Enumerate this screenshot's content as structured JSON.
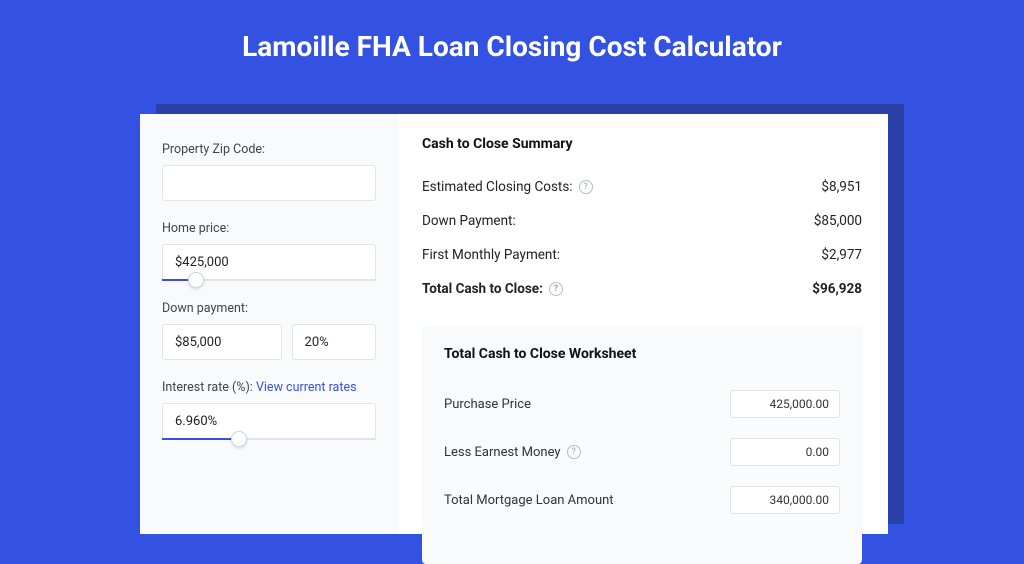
{
  "page": {
    "title": "Lamoille FHA Loan Closing Cost Calculator",
    "background_color": "#3452e1",
    "card_shadow_color": "#2a3fa8",
    "title_fontsize": 28,
    "title_color": "#ffffff"
  },
  "sidebar": {
    "background_color": "#f9fafc",
    "zip": {
      "label": "Property Zip Code:",
      "value": ""
    },
    "home_price": {
      "label": "Home price:",
      "value": "$425,000",
      "slider_pct": 16
    },
    "down_payment": {
      "label": "Down payment:",
      "value": "$85,000",
      "pct": "20%"
    },
    "interest": {
      "label_prefix": "Interest rate (%): ",
      "link_text": "View current rates",
      "value": "6.960%",
      "slider_pct": 36
    }
  },
  "summary": {
    "title": "Cash to Close Summary",
    "rows": [
      {
        "label": "Estimated Closing Costs:",
        "value": "$8,951",
        "help": true,
        "bold": false
      },
      {
        "label": "Down Payment:",
        "value": "$85,000",
        "help": false,
        "bold": false
      },
      {
        "label": "First Monthly Payment:",
        "value": "$2,977",
        "help": false,
        "bold": false
      },
      {
        "label": "Total Cash to Close:",
        "value": "$96,928",
        "help": true,
        "bold": true
      }
    ]
  },
  "worksheet": {
    "title": "Total Cash to Close Worksheet",
    "background_color": "#f9fafc",
    "rows": [
      {
        "label": "Purchase Price",
        "value": "425,000.00",
        "help": false
      },
      {
        "label": "Less Earnest Money",
        "value": "0.00",
        "help": true
      },
      {
        "label": "Total Mortgage Loan Amount",
        "value": "340,000.00",
        "help": false
      }
    ]
  },
  "styling": {
    "accent_color": "#3452e1",
    "border_color": "#e1e4ea",
    "text_color": "#222222",
    "muted_text": "#9aa0ad"
  }
}
